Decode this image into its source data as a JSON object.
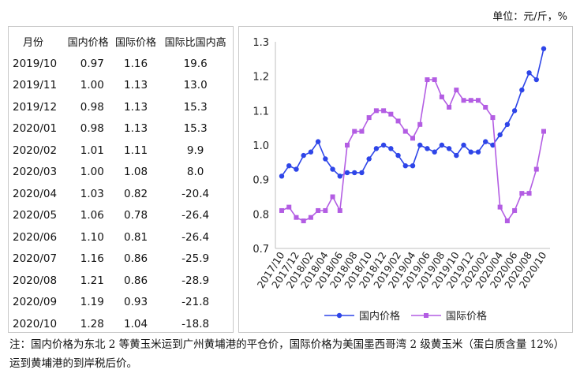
{
  "unit_label": "单位：元/斤，%",
  "table": {
    "headers": [
      "月份",
      "国内价格",
      "国际价格",
      "国际比国内高"
    ],
    "rows": [
      [
        "2019/10",
        "0.97",
        "1.16",
        "19.6"
      ],
      [
        "2019/11",
        "1.00",
        "1.13",
        "13.0"
      ],
      [
        "2019/12",
        "0.98",
        "1.13",
        "15.3"
      ],
      [
        "2020/01",
        "0.98",
        "1.13",
        "15.3"
      ],
      [
        "2020/02",
        "1.01",
        "1.11",
        "9.9"
      ],
      [
        "2020/03",
        "1.00",
        "1.08",
        "8.0"
      ],
      [
        "2020/04",
        "1.03",
        "0.82",
        "-20.4"
      ],
      [
        "2020/05",
        "1.06",
        "0.78",
        "-26.4"
      ],
      [
        "2020/06",
        "1.10",
        "0.81",
        "-26.4"
      ],
      [
        "2020/07",
        "1.16",
        "0.86",
        "-25.9"
      ],
      [
        "2020/08",
        "1.21",
        "0.86",
        "-28.9"
      ],
      [
        "2020/09",
        "1.19",
        "0.93",
        "-21.8"
      ],
      [
        "2020/10",
        "1.28",
        "1.04",
        "-18.8"
      ]
    ]
  },
  "chart_data": {
    "type": "line",
    "x": [
      "2017/10",
      "2017/11",
      "2017/12",
      "2018/01",
      "2018/02",
      "2018/03",
      "2018/04",
      "2018/05",
      "2018/06",
      "2018/07",
      "2018/08",
      "2018/09",
      "2018/10",
      "2018/11",
      "2018/12",
      "2019/01",
      "2019/02",
      "2019/03",
      "2019/04",
      "2019/05",
      "2019/06",
      "2019/07",
      "2019/08",
      "2019/09",
      "2019/10",
      "2019/11",
      "2019/12",
      "2020/01",
      "2020/02",
      "2020/03",
      "2020/04",
      "2020/05",
      "2020/06",
      "2020/07",
      "2020/08",
      "2020/09",
      "2020/10"
    ],
    "tick_labels": [
      "2017/10",
      "2017/12",
      "2018/02",
      "2018/04",
      "2018/06",
      "2018/08",
      "2018/10",
      "2018/12",
      "2019/02",
      "2019/04",
      "2019/06",
      "2019/08",
      "2019/10",
      "2019/12",
      "2020/02",
      "2020/04",
      "2020/06",
      "2020/08",
      "2020/10"
    ],
    "series": [
      {
        "name": "国内价格",
        "color": "#2e45e8",
        "marker": "circle",
        "values": [
          0.91,
          0.94,
          0.93,
          0.97,
          0.98,
          1.01,
          0.96,
          0.93,
          0.91,
          0.92,
          0.92,
          0.92,
          0.96,
          0.99,
          1.0,
          0.99,
          0.97,
          0.94,
          0.94,
          1.0,
          0.99,
          0.98,
          1.0,
          0.99,
          0.97,
          1.0,
          0.98,
          0.98,
          1.01,
          1.0,
          1.03,
          1.06,
          1.1,
          1.16,
          1.21,
          1.19,
          1.28
        ]
      },
      {
        "name": "国际价格",
        "color": "#b35de3",
        "marker": "square",
        "values": [
          0.81,
          0.82,
          0.79,
          0.78,
          0.79,
          0.81,
          0.81,
          0.85,
          0.81,
          1.0,
          1.04,
          1.04,
          1.08,
          1.1,
          1.1,
          1.09,
          1.07,
          1.04,
          1.02,
          1.06,
          1.19,
          1.19,
          1.14,
          1.11,
          1.16,
          1.13,
          1.13,
          1.13,
          1.11,
          1.08,
          0.82,
          0.78,
          0.81,
          0.86,
          0.86,
          0.93,
          1.04
        ]
      }
    ],
    "ylim": [
      0.7,
      1.3
    ],
    "yticks": [
      "0.7",
      "0.8",
      "0.9",
      "1.0",
      "1.1",
      "1.2",
      "1.3"
    ],
    "grid": false,
    "legend_position": "bottom"
  },
  "note": "注：国内价格为东北 2 等黄玉米运到广州黄埔港的平仓价，国际价格为美国墨西哥湾 2 级黄玉米（蛋白质含量 12%）运到黄埔港的到岸税后价。"
}
